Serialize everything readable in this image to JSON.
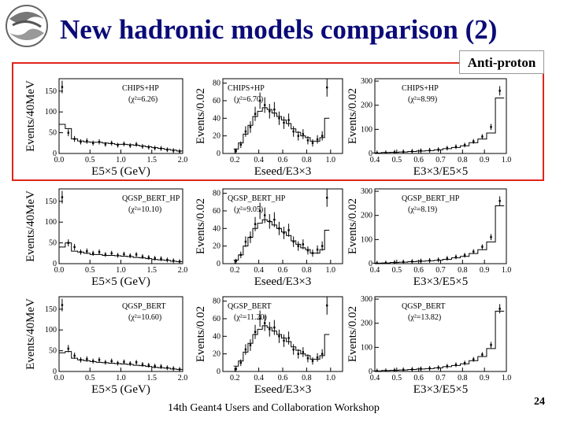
{
  "slide": {
    "title": "New hadronic models comparison (2)",
    "particle_label": "Anti-proton",
    "footer": "14th Geant4 Users and Collaboration Workshop",
    "page_number": "24"
  },
  "colors": {
    "title": "#0a0a78",
    "highlight_box": "#e0241b",
    "data": "#000000"
  },
  "chart_data": [
    {
      "type": "line",
      "model": "CHIPS+HP",
      "chi2_label": "(χ²=6.26)",
      "xlabel": "E5×5 (GeV)",
      "ylabel": "Events/40MeV",
      "xlim": [
        0,
        2
      ],
      "ylim": [
        0,
        180
      ],
      "xticks": [
        "0.0",
        "0.5",
        "1.0",
        "1.5",
        "2.0"
      ],
      "yticks": [
        "0",
        "50",
        "100",
        "150"
      ],
      "series": [
        {
          "style": "histogram",
          "x": [
            0.05,
            0.15,
            0.25,
            0.35,
            0.45,
            0.55,
            0.65,
            0.75,
            0.85,
            0.95,
            1.05,
            1.15,
            1.25,
            1.35,
            1.45,
            1.55,
            1.65,
            1.75,
            1.85,
            1.95
          ],
          "y": [
            70,
            60,
            35,
            30,
            28,
            27,
            27,
            25,
            24,
            22,
            22,
            21,
            20,
            18,
            16,
            14,
            12,
            10,
            8,
            6
          ]
        },
        {
          "style": "points",
          "x": [
            0.05,
            0.15,
            0.25,
            0.35,
            0.45,
            0.55,
            0.65,
            0.75,
            0.85,
            0.95,
            1.05,
            1.15,
            1.25,
            1.35,
            1.45,
            1.55,
            1.65,
            1.75,
            1.85,
            1.95
          ],
          "y": [
            160,
            50,
            35,
            28,
            30,
            25,
            28,
            22,
            25,
            20,
            23,
            19,
            22,
            17,
            15,
            13,
            12,
            9,
            7,
            5
          ]
        }
      ]
    },
    {
      "type": "line",
      "model": "CHIPS+HP",
      "chi2_label": "(χ²=6.70)",
      "xlabel": "Eseed/E3×3",
      "ylabel": "Events/0.02",
      "xlim": [
        0.1,
        1.1
      ],
      "ylim": [
        0,
        85
      ],
      "xticks": [
        "0.2",
        "0.4",
        "0.6",
        "0.8",
        "1.0"
      ],
      "yticks": [
        "0",
        "20",
        "40",
        "60",
        "80"
      ],
      "series": [
        {
          "style": "histogram",
          "x": [
            0.21,
            0.25,
            0.29,
            0.33,
            0.37,
            0.41,
            0.45,
            0.49,
            0.53,
            0.57,
            0.61,
            0.65,
            0.69,
            0.73,
            0.77,
            0.81,
            0.85,
            0.89,
            0.93,
            0.97
          ],
          "y": [
            5,
            12,
            22,
            32,
            42,
            48,
            52,
            50,
            46,
            42,
            38,
            34,
            28,
            24,
            20,
            18,
            14,
            14,
            18,
            40
          ]
        },
        {
          "style": "points",
          "x": [
            0.21,
            0.25,
            0.29,
            0.33,
            0.37,
            0.41,
            0.45,
            0.49,
            0.53,
            0.57,
            0.61,
            0.65,
            0.69,
            0.73,
            0.77,
            0.81,
            0.85,
            0.89,
            0.93,
            0.97
          ],
          "y": [
            3,
            10,
            25,
            30,
            45,
            60,
            55,
            48,
            50,
            40,
            35,
            38,
            25,
            20,
            22,
            15,
            12,
            16,
            20,
            75
          ]
        }
      ]
    },
    {
      "type": "line",
      "model": "CHIPS+HP",
      "chi2_label": "(χ²=8.99)",
      "xlabel": "E3×3/E5×5",
      "ylabel": "Events/0.02",
      "xlim": [
        0.4,
        1.0
      ],
      "ylim": [
        0,
        310
      ],
      "xticks": [
        "0.4",
        "0.5",
        "0.6",
        "0.7",
        "0.8",
        "0.9",
        "1.0"
      ],
      "yticks": [
        "0",
        "100",
        "200",
        "300"
      ],
      "series": [
        {
          "style": "histogram",
          "x": [
            0.41,
            0.45,
            0.49,
            0.53,
            0.57,
            0.61,
            0.65,
            0.69,
            0.73,
            0.77,
            0.81,
            0.85,
            0.89,
            0.93,
            0.97
          ],
          "y": [
            2,
            4,
            5,
            6,
            8,
            10,
            12,
            15,
            20,
            25,
            32,
            45,
            60,
            85,
            230
          ]
        },
        {
          "style": "points",
          "x": [
            0.41,
            0.45,
            0.49,
            0.53,
            0.57,
            0.61,
            0.65,
            0.69,
            0.73,
            0.77,
            0.81,
            0.85,
            0.89,
            0.93,
            0.97
          ],
          "y": [
            2,
            3,
            5,
            7,
            9,
            11,
            13,
            16,
            22,
            28,
            35,
            50,
            70,
            110,
            260
          ]
        }
      ]
    },
    {
      "type": "line",
      "model": "QGSP_BERT_HP",
      "chi2_label": "(χ²=10.10)",
      "xlabel": "E5×5 (GeV)",
      "ylabel": "Events/40MeV",
      "xlim": [
        0,
        2
      ],
      "ylim": [
        0,
        180
      ],
      "xticks": [
        "0.0",
        "0.5",
        "1.0",
        "1.5",
        "2.0"
      ],
      "yticks": [
        "0",
        "50",
        "100",
        "150"
      ],
      "series": [
        {
          "style": "histogram",
          "x": [
            0.05,
            0.15,
            0.25,
            0.35,
            0.45,
            0.55,
            0.65,
            0.75,
            0.85,
            0.95,
            1.05,
            1.15,
            1.25,
            1.35,
            1.45,
            1.55,
            1.65,
            1.75,
            1.85,
            1.95
          ],
          "y": [
            40,
            50,
            30,
            28,
            25,
            22,
            22,
            20,
            20,
            19,
            18,
            17,
            15,
            14,
            12,
            10,
            9,
            8,
            6,
            5
          ]
        },
        {
          "style": "points",
          "x": [
            0.05,
            0.15,
            0.25,
            0.35,
            0.45,
            0.55,
            0.65,
            0.75,
            0.85,
            0.95,
            1.05,
            1.15,
            1.25,
            1.35,
            1.45,
            1.55,
            1.65,
            1.75,
            1.85,
            1.95
          ],
          "y": [
            160,
            50,
            40,
            28,
            30,
            25,
            28,
            22,
            25,
            20,
            23,
            19,
            22,
            17,
            15,
            13,
            12,
            9,
            7,
            5
          ]
        }
      ]
    },
    {
      "type": "line",
      "model": "QGSP_BERT_HP",
      "chi2_label": "(χ²=9.05)",
      "xlabel": "Eseed/E3×3",
      "ylabel": "Events/0.02",
      "xlim": [
        0.1,
        1.1
      ],
      "ylim": [
        0,
        85
      ],
      "xticks": [
        "0.2",
        "0.4",
        "0.6",
        "0.8",
        "1.0"
      ],
      "yticks": [
        "0",
        "20",
        "40",
        "60",
        "80"
      ],
      "series": [
        {
          "style": "histogram",
          "x": [
            0.21,
            0.25,
            0.29,
            0.33,
            0.37,
            0.41,
            0.45,
            0.49,
            0.53,
            0.57,
            0.61,
            0.65,
            0.69,
            0.73,
            0.77,
            0.81,
            0.85,
            0.89,
            0.93,
            0.97
          ],
          "y": [
            4,
            10,
            20,
            30,
            40,
            46,
            50,
            48,
            44,
            40,
            36,
            32,
            26,
            22,
            18,
            16,
            12,
            12,
            16,
            38
          ]
        },
        {
          "style": "points",
          "x": [
            0.21,
            0.25,
            0.29,
            0.33,
            0.37,
            0.41,
            0.45,
            0.49,
            0.53,
            0.57,
            0.61,
            0.65,
            0.69,
            0.73,
            0.77,
            0.81,
            0.85,
            0.89,
            0.93,
            0.97
          ],
          "y": [
            3,
            10,
            25,
            30,
            45,
            60,
            55,
            48,
            50,
            40,
            35,
            38,
            25,
            20,
            22,
            15,
            12,
            16,
            20,
            75
          ]
        }
      ]
    },
    {
      "type": "line",
      "model": "QGSP_BERT_HP",
      "chi2_label": "(χ²=8.19)",
      "xlabel": "E3×3/E5×5",
      "ylabel": "Events/0.02",
      "xlim": [
        0.4,
        1.0
      ],
      "ylim": [
        0,
        310
      ],
      "xticks": [
        "0.4",
        "0.5",
        "0.6",
        "0.7",
        "0.8",
        "0.9",
        "1.0"
      ],
      "yticks": [
        "0",
        "100",
        "200",
        "300"
      ],
      "series": [
        {
          "style": "histogram",
          "x": [
            0.41,
            0.45,
            0.49,
            0.53,
            0.57,
            0.61,
            0.65,
            0.69,
            0.73,
            0.77,
            0.81,
            0.85,
            0.89,
            0.93,
            0.97
          ],
          "y": [
            2,
            3,
            5,
            6,
            8,
            10,
            12,
            14,
            18,
            24,
            30,
            42,
            58,
            90,
            240
          ]
        },
        {
          "style": "points",
          "x": [
            0.41,
            0.45,
            0.49,
            0.53,
            0.57,
            0.61,
            0.65,
            0.69,
            0.73,
            0.77,
            0.81,
            0.85,
            0.89,
            0.93,
            0.97
          ],
          "y": [
            2,
            3,
            5,
            7,
            9,
            11,
            13,
            16,
            22,
            28,
            35,
            50,
            70,
            110,
            260
          ]
        }
      ]
    },
    {
      "type": "line",
      "model": "QGSP_BERT",
      "chi2_label": "(χ²=10.60)",
      "xlabel": "E5×5 (GeV)",
      "ylabel": "Events/40MeV",
      "xlim": [
        0,
        2
      ],
      "ylim": [
        0,
        180
      ],
      "xticks": [
        "0.0",
        "0.5",
        "1.0",
        "1.5",
        "2.0"
      ],
      "yticks": [
        "0",
        "50",
        "100",
        "150"
      ],
      "series": [
        {
          "style": "histogram",
          "x": [
            0.05,
            0.15,
            0.25,
            0.35,
            0.45,
            0.55,
            0.65,
            0.75,
            0.85,
            0.95,
            1.05,
            1.15,
            1.25,
            1.35,
            1.45,
            1.55,
            1.65,
            1.75,
            1.85,
            1.95
          ],
          "y": [
            45,
            48,
            32,
            28,
            26,
            24,
            22,
            21,
            20,
            19,
            18,
            17,
            15,
            14,
            12,
            10,
            9,
            8,
            6,
            5
          ]
        },
        {
          "style": "points",
          "x": [
            0.05,
            0.15,
            0.25,
            0.35,
            0.45,
            0.55,
            0.65,
            0.75,
            0.85,
            0.95,
            1.05,
            1.15,
            1.25,
            1.35,
            1.45,
            1.55,
            1.65,
            1.75,
            1.85,
            1.95
          ],
          "y": [
            160,
            55,
            38,
            28,
            30,
            25,
            28,
            22,
            25,
            20,
            23,
            19,
            22,
            17,
            15,
            13,
            12,
            9,
            7,
            5
          ]
        }
      ]
    },
    {
      "type": "line",
      "model": "QGSP_BERT",
      "chi2_label": "(χ²=11.20)",
      "xlabel": "Eseed/E3×3",
      "ylabel": "Events/0.02",
      "xlim": [
        0.1,
        1.1
      ],
      "ylim": [
        0,
        85
      ],
      "xticks": [
        "0.2",
        "0.4",
        "0.6",
        "0.8",
        "1.0"
      ],
      "yticks": [
        "0",
        "20",
        "40",
        "60",
        "80"
      ],
      "series": [
        {
          "style": "histogram",
          "x": [
            0.21,
            0.25,
            0.29,
            0.33,
            0.37,
            0.41,
            0.45,
            0.49,
            0.53,
            0.57,
            0.61,
            0.65,
            0.69,
            0.73,
            0.77,
            0.81,
            0.85,
            0.89,
            0.93,
            0.97
          ],
          "y": [
            6,
            12,
            22,
            32,
            42,
            48,
            52,
            50,
            46,
            42,
            38,
            34,
            28,
            24,
            20,
            18,
            14,
            14,
            18,
            42
          ]
        },
        {
          "style": "points",
          "x": [
            0.21,
            0.25,
            0.29,
            0.33,
            0.37,
            0.41,
            0.45,
            0.49,
            0.53,
            0.57,
            0.61,
            0.65,
            0.69,
            0.73,
            0.77,
            0.81,
            0.85,
            0.89,
            0.93,
            0.97
          ],
          "y": [
            3,
            10,
            25,
            30,
            45,
            60,
            55,
            48,
            50,
            40,
            35,
            38,
            25,
            20,
            22,
            15,
            12,
            16,
            20,
            75
          ]
        }
      ]
    },
    {
      "type": "line",
      "model": "QGSP_BERT",
      "chi2_label": "(χ²=13.82)",
      "xlabel": "E3×3/E5×5",
      "ylabel": "Events/0.02",
      "xlim": [
        0.4,
        1.0
      ],
      "ylim": [
        0,
        310
      ],
      "xticks": [
        "0.4",
        "0.5",
        "0.6",
        "0.7",
        "0.8",
        "0.9",
        "1.0"
      ],
      "yticks": [
        "0",
        "100",
        "200",
        "300"
      ],
      "series": [
        {
          "style": "histogram",
          "x": [
            0.41,
            0.45,
            0.49,
            0.53,
            0.57,
            0.61,
            0.65,
            0.69,
            0.73,
            0.77,
            0.81,
            0.85,
            0.89,
            0.93,
            0.97
          ],
          "y": [
            2,
            4,
            5,
            6,
            8,
            10,
            12,
            15,
            20,
            25,
            32,
            45,
            62,
            95,
            250
          ]
        },
        {
          "style": "points",
          "x": [
            0.41,
            0.45,
            0.49,
            0.53,
            0.57,
            0.61,
            0.65,
            0.69,
            0.73,
            0.77,
            0.81,
            0.85,
            0.89,
            0.93,
            0.97
          ],
          "y": [
            2,
            3,
            5,
            7,
            9,
            11,
            13,
            16,
            22,
            28,
            35,
            50,
            70,
            110,
            260
          ]
        }
      ]
    }
  ]
}
